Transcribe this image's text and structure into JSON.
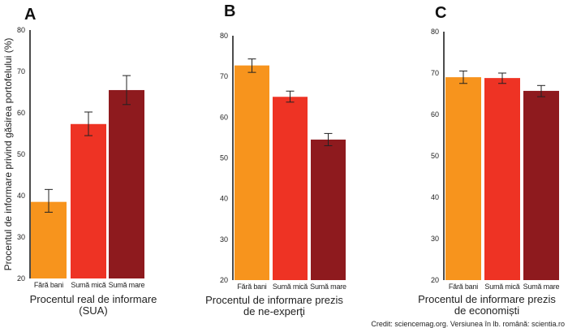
{
  "colors": {
    "Fără bani": "#f7941d",
    "Sumă mică": "#ee3324",
    "Sumă mare": "#8e1a1e"
  },
  "ylabel": "Procentul de informare privind găsirea portofelului (%)",
  "credit": "Credit: sciencemag.org. Versiunea în lb. română: scientia.ro",
  "chart_data": [
    {
      "type": "bar",
      "panel": "A",
      "xlabel": [
        "Procentul real de informare",
        "(SUA)"
      ],
      "ylabel": "Procentul de informare privind găsirea portofelului (%)",
      "categories": [
        "Fără bani",
        "Sumă mică",
        "Sumă mare"
      ],
      "values": [
        38.5,
        57.3,
        65.5
      ],
      "error_low": [
        36.0,
        54.5,
        62.0
      ],
      "error_high": [
        41.5,
        60.2,
        69.0
      ],
      "ylim": [
        20,
        80
      ],
      "yticks": [
        20,
        30,
        40,
        50,
        60,
        70,
        80
      ]
    },
    {
      "type": "bar",
      "panel": "B",
      "xlabel": [
        "Procentul de informare prezis",
        "de ne-experţi"
      ],
      "categories": [
        "Fără bani",
        "Sumă mică",
        "Sumă mare"
      ],
      "values": [
        72.7,
        65.0,
        54.5
      ],
      "error_low": [
        71.0,
        63.7,
        53.0
      ],
      "error_high": [
        74.3,
        66.4,
        56.0
      ],
      "ylim": [
        20,
        80
      ],
      "yticks": [
        20,
        30,
        40,
        50,
        60,
        70,
        80
      ]
    },
    {
      "type": "bar",
      "panel": "C",
      "xlabel": [
        "Procentul de informare prezis",
        "de economiști"
      ],
      "categories": [
        "Fără bani",
        "Sumă mică",
        "Sumă mare"
      ],
      "values": [
        69.0,
        68.8,
        65.7
      ],
      "error_low": [
        67.5,
        67.5,
        64.3
      ],
      "error_high": [
        70.5,
        70.0,
        67.0
      ],
      "ylim": [
        20,
        80
      ],
      "yticks": [
        20,
        30,
        40,
        50,
        60,
        70,
        80
      ]
    }
  ]
}
